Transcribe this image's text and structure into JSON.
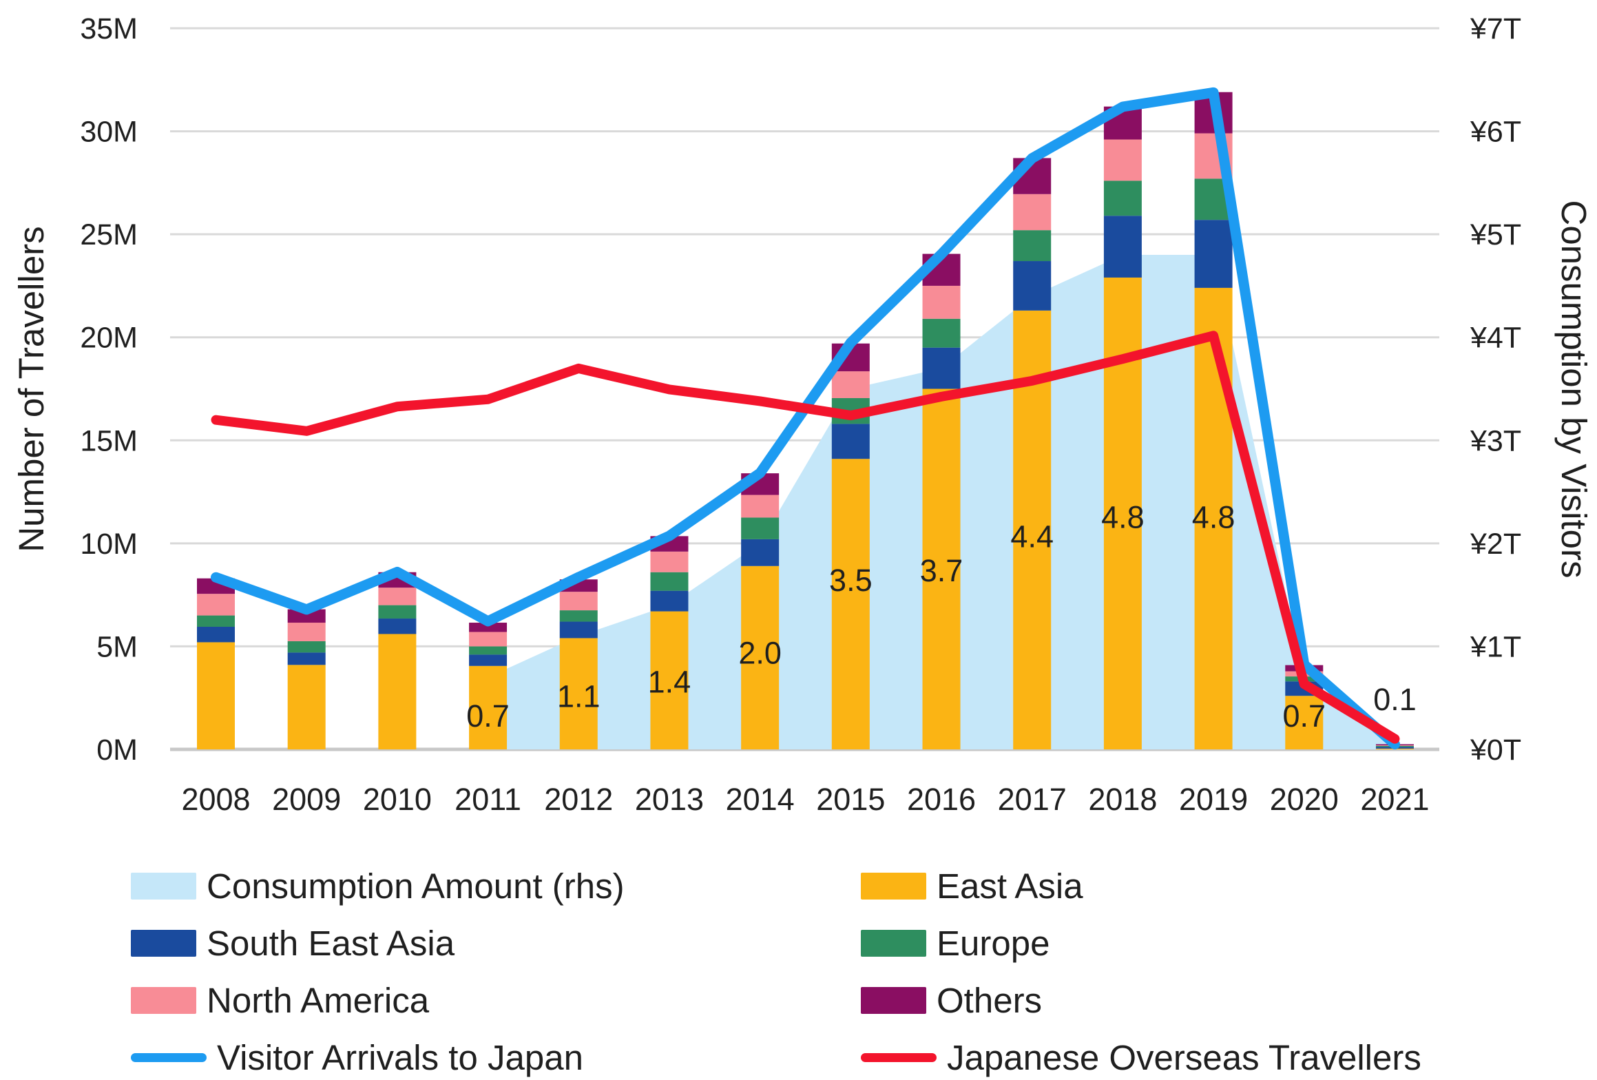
{
  "figure": {
    "left_axis": {
      "title": "Number of Travellers",
      "ticks": [
        "35M",
        "30M",
        "25M",
        "20M",
        "15M",
        "10M",
        "5M",
        "0M"
      ]
    },
    "right_axis": {
      "title": "Consumption by Visitors",
      "ticks": [
        "¥7T",
        "¥6T",
        "¥5T",
        "¥4T",
        "¥3T",
        "¥2T",
        "¥1T",
        "¥0T"
      ]
    }
  },
  "chart_data": {
    "type": "combo",
    "subtypes": [
      "area",
      "stacked-bar",
      "line"
    ],
    "x": [
      "2008",
      "2009",
      "2010",
      "2011",
      "2012",
      "2013",
      "2014",
      "2015",
      "2016",
      "2017",
      "2018",
      "2019",
      "2020",
      "2021"
    ],
    "left_axis": {
      "label": "Number of Travellers",
      "unit": "millions of travellers",
      "range": [
        0,
        35
      ],
      "grid": true
    },
    "right_axis": {
      "label": "Consumption by Visitors",
      "unit": "trillion yen",
      "range": [
        0,
        7
      ]
    },
    "legend_position": "bottom",
    "stack_order": [
      "East Asia",
      "South East Asia",
      "Europe",
      "North America",
      "Others"
    ],
    "series": [
      {
        "name": "Consumption Amount (rhs)",
        "type": "area",
        "axis": "right",
        "color": "#C5E7F9",
        "values": [
          null,
          null,
          null,
          0.7,
          1.1,
          1.4,
          2.0,
          3.5,
          3.7,
          4.4,
          4.8,
          4.8,
          0.7,
          0.1
        ]
      },
      {
        "name": "East Asia",
        "type": "bar",
        "axis": "left",
        "color": "#FBB414",
        "values": [
          5.2,
          4.1,
          5.6,
          4.05,
          5.4,
          6.7,
          8.9,
          14.1,
          17.5,
          21.3,
          22.9,
          22.4,
          2.6,
          0.04
        ]
      },
      {
        "name": "South East Asia",
        "type": "bar",
        "axis": "left",
        "color": "#1A4B9E",
        "values": [
          0.75,
          0.6,
          0.75,
          0.55,
          0.8,
          1.0,
          1.3,
          1.7,
          2.0,
          2.4,
          3.0,
          3.3,
          0.7,
          0.08
        ]
      },
      {
        "name": "Europe",
        "type": "bar",
        "axis": "left",
        "color": "#2E8E5F",
        "values": [
          0.55,
          0.55,
          0.65,
          0.4,
          0.55,
          0.9,
          1.05,
          1.25,
          1.4,
          1.5,
          1.7,
          2.0,
          0.24,
          0.05
        ]
      },
      {
        "name": "North America",
        "type": "bar",
        "axis": "left",
        "color": "#F88C96",
        "values": [
          1.05,
          0.9,
          0.85,
          0.7,
          0.9,
          1.0,
          1.1,
          1.3,
          1.6,
          1.75,
          2.0,
          2.2,
          0.25,
          0.03
        ]
      },
      {
        "name": "Others",
        "type": "bar",
        "axis": "left",
        "color": "#8A0E62",
        "values": [
          0.75,
          0.65,
          0.75,
          0.45,
          0.6,
          0.75,
          1.05,
          1.35,
          1.55,
          1.75,
          1.6,
          2.0,
          0.3,
          0.05
        ]
      },
      {
        "name": "Visitor Arrivals to Japan",
        "type": "line",
        "axis": "left",
        "color": "#1D9BF1",
        "values": [
          8.35,
          6.79,
          8.61,
          6.22,
          8.36,
          10.36,
          13.41,
          19.74,
          24.04,
          28.69,
          31.19,
          31.88,
          4.12,
          0.25
        ]
      },
      {
        "name": "Japanese Overseas Travellers",
        "type": "line",
        "axis": "left",
        "color": "#F3142C",
        "values": [
          15.99,
          15.45,
          16.64,
          16.99,
          18.49,
          17.47,
          16.9,
          16.21,
          17.12,
          17.89,
          18.95,
          20.08,
          3.17,
          0.51
        ]
      }
    ],
    "data_labels": {
      "series": "Consumption Amount (rhs)",
      "start_year": "2011",
      "values": [
        "0.7",
        "1.1",
        "1.4",
        "2.0",
        "3.5",
        "3.7",
        "4.4",
        "4.8",
        "4.8",
        "0.7",
        "0.1"
      ]
    }
  },
  "legend": {
    "items": [
      {
        "label": "Consumption Amount (rhs)",
        "swatch": "box",
        "color": "#C5E7F9"
      },
      {
        "label": "East Asia",
        "swatch": "box",
        "color": "#FBB414"
      },
      {
        "label": "South East Asia",
        "swatch": "box",
        "color": "#1A4B9E"
      },
      {
        "label": "Europe",
        "swatch": "box",
        "color": "#2E8E5F"
      },
      {
        "label": "North America",
        "swatch": "box",
        "color": "#F88C96"
      },
      {
        "label": "Others",
        "swatch": "box",
        "color": "#8A0E62"
      },
      {
        "label": "Visitor Arrivals to Japan",
        "swatch": "line",
        "color": "#1D9BF1"
      },
      {
        "label": "Japanese Overseas Travellers",
        "swatch": "line",
        "color": "#F3142C"
      }
    ]
  }
}
